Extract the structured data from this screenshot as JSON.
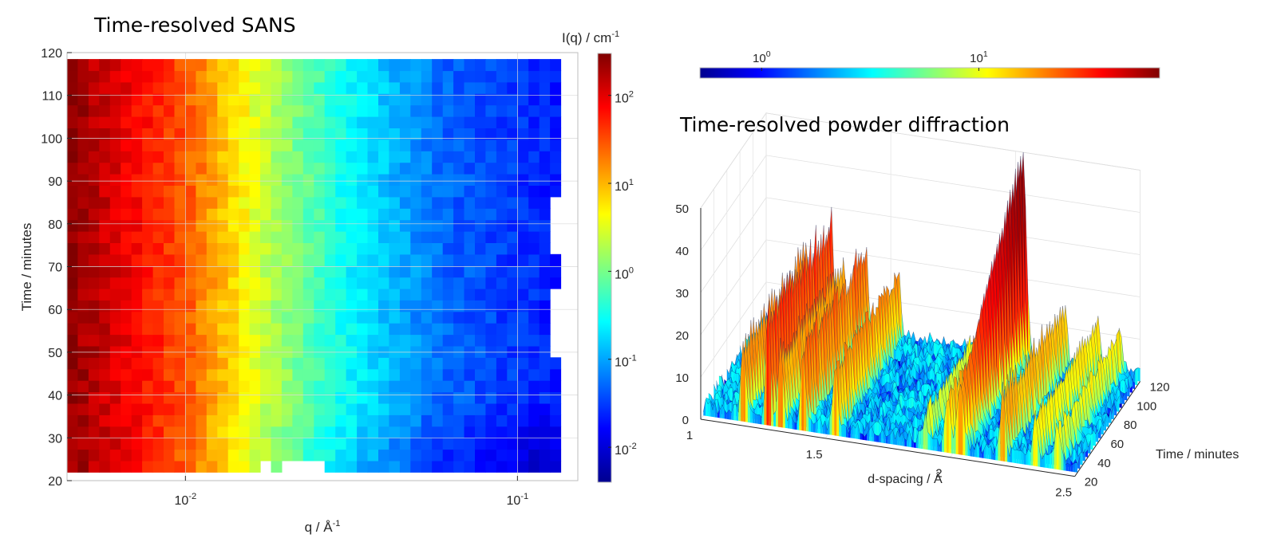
{
  "chart_data": [
    {
      "type": "heatmap",
      "title": "Time-resolved SANS",
      "xlabel": "q / Å",
      "xlabel_sup": "-1",
      "ylabel": "Time / minutes",
      "x_scale": "log",
      "xlim": [
        0.0044,
        0.152
      ],
      "ylim": [
        20,
        120
      ],
      "x_ticks": [
        {
          "value": 0.01,
          "base": "10",
          "exp": "-2"
        },
        {
          "value": 0.1,
          "base": "10",
          "exp": "-1"
        }
      ],
      "y_ticks": [
        20,
        30,
        40,
        50,
        60,
        70,
        80,
        90,
        100,
        110,
        120
      ],
      "data_time_range": [
        22,
        118.5
      ],
      "colorbar": {
        "label": "I(q) / cm",
        "label_sup": "-1",
        "scale": "log",
        "range": [
          0.004,
          300
        ],
        "ticks": [
          {
            "value": 0.01,
            "base": "10",
            "exp": "-2"
          },
          {
            "value": 0.1,
            "base": "10",
            "exp": "-1"
          },
          {
            "value": 1,
            "base": "10",
            "exp": "0"
          },
          {
            "value": 10,
            "base": "10",
            "exp": "1"
          },
          {
            "value": 100,
            "base": "10",
            "exp": "2"
          }
        ],
        "colormap": "jet"
      },
      "intensity_model": {
        "description": "I(q) roughly power-law decreasing with q; lowest-q red, highest-q blue",
        "points_at_t70": [
          [
            0.0045,
            250
          ],
          [
            0.01,
            30
          ],
          [
            0.018,
            2
          ],
          [
            0.03,
            0.3
          ],
          [
            0.06,
            0.05
          ],
          [
            0.14,
            0.02
          ]
        ]
      },
      "grid": true
    },
    {
      "type": "surface",
      "title": "Time-resolved powder diffraction",
      "xlabel": "d-spacing / Å",
      "ylabel": "Time / minutes",
      "zlabel": "",
      "xlim": [
        1,
        2.5
      ],
      "ylim": [
        20,
        120
      ],
      "zlim": [
        0,
        50
      ],
      "x_ticks": [
        "1",
        "1.5",
        "2",
        "2.5"
      ],
      "y_ticks": [
        "20",
        "40",
        "60",
        "80",
        "100",
        "120"
      ],
      "z_ticks": [
        "0",
        "10",
        "20",
        "30",
        "40",
        "50"
      ],
      "colorbar": {
        "scale": "log",
        "orientation": "horizontal",
        "ticks": [
          {
            "value": 1,
            "base": "10",
            "exp": "0"
          },
          {
            "value": 10,
            "base": "10",
            "exp": "1"
          }
        ],
        "colormap": "jet"
      },
      "peaks": [
        {
          "d": 1.16,
          "height": 20
        },
        {
          "d": 1.26,
          "height": 29
        },
        {
          "d": 1.31,
          "height": 18
        },
        {
          "d": 1.4,
          "height": 23
        },
        {
          "d": 1.53,
          "height": 18
        },
        {
          "d": 1.89,
          "height": 8
        },
        {
          "d": 1.98,
          "height": 15
        },
        {
          "d": 2.03,
          "height": 50
        },
        {
          "d": 2.2,
          "height": 16
        },
        {
          "d": 2.33,
          "height": 12
        },
        {
          "d": 2.42,
          "height": 10
        }
      ],
      "grid": true
    }
  ]
}
